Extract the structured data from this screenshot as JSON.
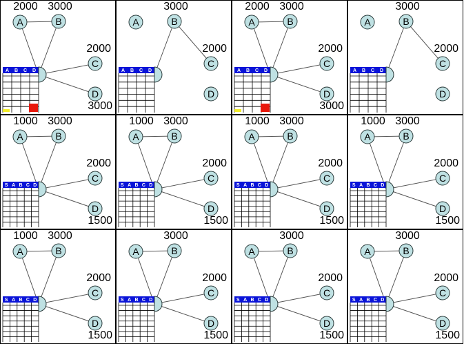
{
  "colors": {
    "node_fill": "#bfe1e3",
    "node_stroke": "#2a3a3a",
    "header_fill": "#0a14d8",
    "header_text": "#ffffff",
    "panel_border": "#000000",
    "alert_red": "#e8180c",
    "alert_yellow": "#f3ee2a"
  },
  "panels": [
    {
      "nodes": {
        "A": "A",
        "B": "B",
        "C": "C",
        "D": "D"
      },
      "edges": [
        "A-P",
        "A-B",
        "B-P",
        "C-P",
        "D-P"
      ],
      "numbers": {
        "A": "2000",
        "B": "3000",
        "C": "2000",
        "D": "3000"
      },
      "header": [
        "A",
        "B",
        "C",
        "D"
      ],
      "rows": 6,
      "bars": {
        "yellow": true,
        "red": true
      }
    },
    {
      "nodes": {
        "A": "A",
        "B": "B",
        "C": "C",
        "D": "D"
      },
      "edges": [
        "B-P",
        "B-C"
      ],
      "numbers": {
        "A": "",
        "B": "3000",
        "C": "2000",
        "D": ""
      },
      "header": [
        "A",
        "B",
        "C",
        "D"
      ],
      "rows": 6,
      "bars": {
        "yellow": false,
        "red": false
      }
    },
    {
      "nodes": {
        "A": "A",
        "B": "B",
        "C": "C",
        "D": "D"
      },
      "edges": [
        "A-P",
        "A-B",
        "B-P",
        "C-P",
        "D-P"
      ],
      "numbers": {
        "A": "2000",
        "B": "3000",
        "C": "2000",
        "D": "3000"
      },
      "header": [
        "A",
        "B",
        "C",
        "D"
      ],
      "rows": 6,
      "bars": {
        "yellow": true,
        "red": true
      }
    },
    {
      "nodes": {
        "A": "A",
        "B": "B",
        "C": "C",
        "D": "D"
      },
      "edges": [
        "B-P",
        "B-C"
      ],
      "numbers": {
        "A": "",
        "B": "3000",
        "C": "2000",
        "D": ""
      },
      "header": [
        "A",
        "B",
        "C",
        "D"
      ],
      "rows": 6,
      "bars": {
        "yellow": false,
        "red": false
      }
    },
    {
      "nodes": {
        "A": "A",
        "B": "B",
        "C": "C",
        "D": "D"
      },
      "edges": [
        "A-P",
        "A-B",
        "B-P",
        "C-P",
        "D-P"
      ],
      "numbers": {
        "A": "1000",
        "B": "3000",
        "C": "2000",
        "D": "1500"
      },
      "header": [
        "S",
        "A",
        "B",
        "C",
        "D"
      ],
      "rows": 7,
      "bars": {
        "yellow": false,
        "red": false
      }
    },
    {
      "nodes": {
        "A": "A",
        "B": "B",
        "C": "C",
        "D": "D"
      },
      "edges": [
        "A-P",
        "A-B",
        "B-P",
        "C-P",
        "D-P"
      ],
      "numbers": {
        "A": "1000",
        "B": "3000",
        "C": "2000",
        "D": "1500"
      },
      "header": [
        "S",
        "A",
        "B",
        "C",
        "D"
      ],
      "rows": 7,
      "bars": {
        "yellow": false,
        "red": false
      }
    },
    {
      "nodes": {
        "A": "A",
        "B": "B",
        "C": "C",
        "D": "D"
      },
      "edges": [
        "A-P",
        "A-B",
        "B-P",
        "C-P",
        "D-P"
      ],
      "numbers": {
        "A": "1000",
        "B": "3000",
        "C": "2000",
        "D": "1500"
      },
      "header": [
        "S",
        "A",
        "B",
        "C",
        "D"
      ],
      "rows": 7,
      "bars": {
        "yellow": false,
        "red": false
      }
    },
    {
      "nodes": {
        "A": "A",
        "B": "B",
        "C": "C",
        "D": "D"
      },
      "edges": [
        "A-P",
        "A-B",
        "B-P",
        "C-P",
        "D-P"
      ],
      "numbers": {
        "A": "1000",
        "B": "3000",
        "C": "2000",
        "D": "1500"
      },
      "header": [
        "S",
        "A",
        "B",
        "C",
        "D"
      ],
      "rows": 7,
      "bars": {
        "yellow": false,
        "red": false
      }
    },
    {
      "nodes": {
        "A": "A",
        "B": "B",
        "C": "C",
        "D": "D"
      },
      "edges": [
        "A-P",
        "A-B",
        "B-P",
        "C-P",
        "D-P"
      ],
      "numbers": {
        "A": "1000",
        "B": "3000",
        "C": "2000",
        "D": "1500"
      },
      "header": [
        "S",
        "A",
        "B",
        "C",
        "D"
      ],
      "rows": 7,
      "bars": {
        "yellow": false,
        "red": false
      }
    },
    {
      "nodes": {
        "A": "A",
        "B": "B",
        "C": "C",
        "D": "D"
      },
      "edges": [
        "A-P",
        "A-B",
        "B-P",
        "C-P",
        "D-P"
      ],
      "numbers": {
        "A": "",
        "B": "3000",
        "C": "2000",
        "D": "1500"
      },
      "header": [
        "S",
        "A",
        "B",
        "C",
        "D"
      ],
      "rows": 7,
      "bars": {
        "yellow": false,
        "red": false
      }
    },
    {
      "nodes": {
        "A": "A",
        "B": "B",
        "C": "C",
        "D": "D"
      },
      "edges": [
        "A-P",
        "A-B",
        "B-P",
        "C-P",
        "D-P"
      ],
      "numbers": {
        "A": "",
        "B": "3000",
        "C": "2000",
        "D": "1500"
      },
      "header": [
        "S",
        "A",
        "B",
        "C",
        "D"
      ],
      "rows": 7,
      "bars": {
        "yellow": false,
        "red": false
      }
    },
    {
      "nodes": {
        "A": "A",
        "B": "B",
        "C": "C",
        "D": "D"
      },
      "edges": [
        "A-P",
        "A-B",
        "B-P",
        "C-P",
        "D-P"
      ],
      "numbers": {
        "A": "",
        "B": "3000",
        "C": "2000",
        "D": "1500"
      },
      "header": [
        "S",
        "A",
        "B",
        "C",
        "D"
      ],
      "rows": 7,
      "bars": {
        "yellow": false,
        "red": false
      }
    }
  ]
}
